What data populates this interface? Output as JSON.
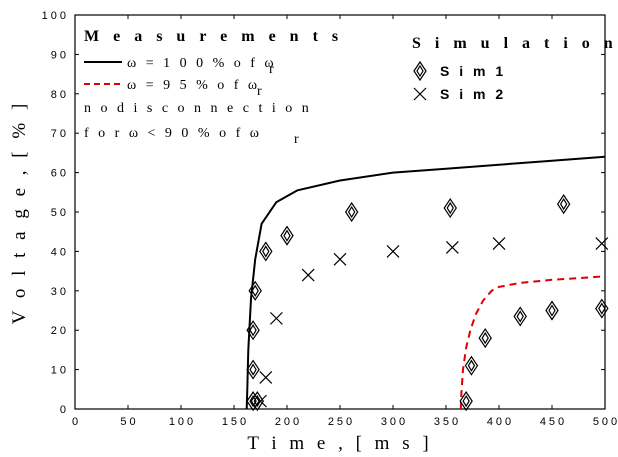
{
  "chart_data": {
    "type": "scatter",
    "xlabel": "T i m e ,  [ m s ]",
    "ylabel": "V o l t a g e ,  [ % ]",
    "xlim": [
      0,
      500
    ],
    "ylim": [
      0,
      100
    ],
    "xticks": [
      0,
      50,
      100,
      150,
      200,
      250,
      300,
      350,
      400,
      450,
      500
    ],
    "yticks": [
      0,
      10,
      20,
      30,
      40,
      50,
      60,
      70,
      80,
      90,
      100
    ],
    "xtick_labels": [
      "0",
      "50",
      "100",
      "150",
      "200",
      "250",
      "300",
      "350",
      "400",
      "450",
      "500"
    ],
    "ytick_labels": [
      "0",
      "10",
      "20",
      "30",
      "40",
      "50",
      "60",
      "70",
      "80",
      "90",
      "100"
    ],
    "grid": false,
    "legend_measurements": {
      "title": "M e a s u r e m e n t s",
      "line1": "ω = 1 0 0 %   o f  ω",
      "line1_sub": "r",
      "line2": "ω = 9 5 %   o f  ω",
      "line2_sub": "r",
      "note1": "n o  d i s c o n n e c t i o n",
      "note2": "f o r  ω < 9 0 %   o f  ω",
      "note2_sub": "r"
    },
    "legend_simulations": {
      "title": "S i m u l a t i o n s",
      "sim1": "S i m  1",
      "sim2": "S i m  2"
    },
    "series": [
      {
        "name": "ω=100% of ωr",
        "kind": "line",
        "style": "solid",
        "color": "#000000",
        "x": [
          162,
          162.5,
          163.5,
          166,
          170,
          176,
          190,
          210,
          250,
          300,
          350,
          400,
          450,
          500
        ],
        "y": [
          0,
          5,
          15,
          28,
          38,
          47,
          52.5,
          55.5,
          58,
          60,
          61,
          62,
          63,
          64
        ]
      },
      {
        "name": "ω=95% of ωr",
        "kind": "line",
        "style": "dashed",
        "color": "#e00000",
        "x": [
          364,
          364.5,
          366,
          369,
          373,
          378,
          385,
          393,
          400,
          420,
          450,
          480,
          500
        ],
        "y": [
          0,
          4,
          10,
          15.5,
          20,
          24,
          27.5,
          30,
          31,
          32,
          32.8,
          33.3,
          33.7
        ]
      },
      {
        "name": "Sim 1",
        "kind": "marker",
        "marker": "diamond",
        "color": "#000000",
        "x": [
          168,
          168,
          168,
          170,
          172,
          180,
          200,
          261,
          354,
          461,
          369,
          374,
          387,
          420,
          450,
          497
        ],
        "y": [
          2,
          10,
          20,
          30,
          2,
          40,
          44,
          50,
          51,
          52,
          2,
          11,
          18,
          23.5,
          25,
          25.5
        ]
      },
      {
        "name": "Sim 2",
        "kind": "marker",
        "marker": "x",
        "color": "#000000",
        "x": [
          175,
          180,
          190,
          220,
          250,
          300,
          356,
          400,
          497
        ],
        "y": [
          2,
          8,
          23,
          34,
          38,
          40,
          41,
          42,
          42
        ]
      }
    ]
  }
}
